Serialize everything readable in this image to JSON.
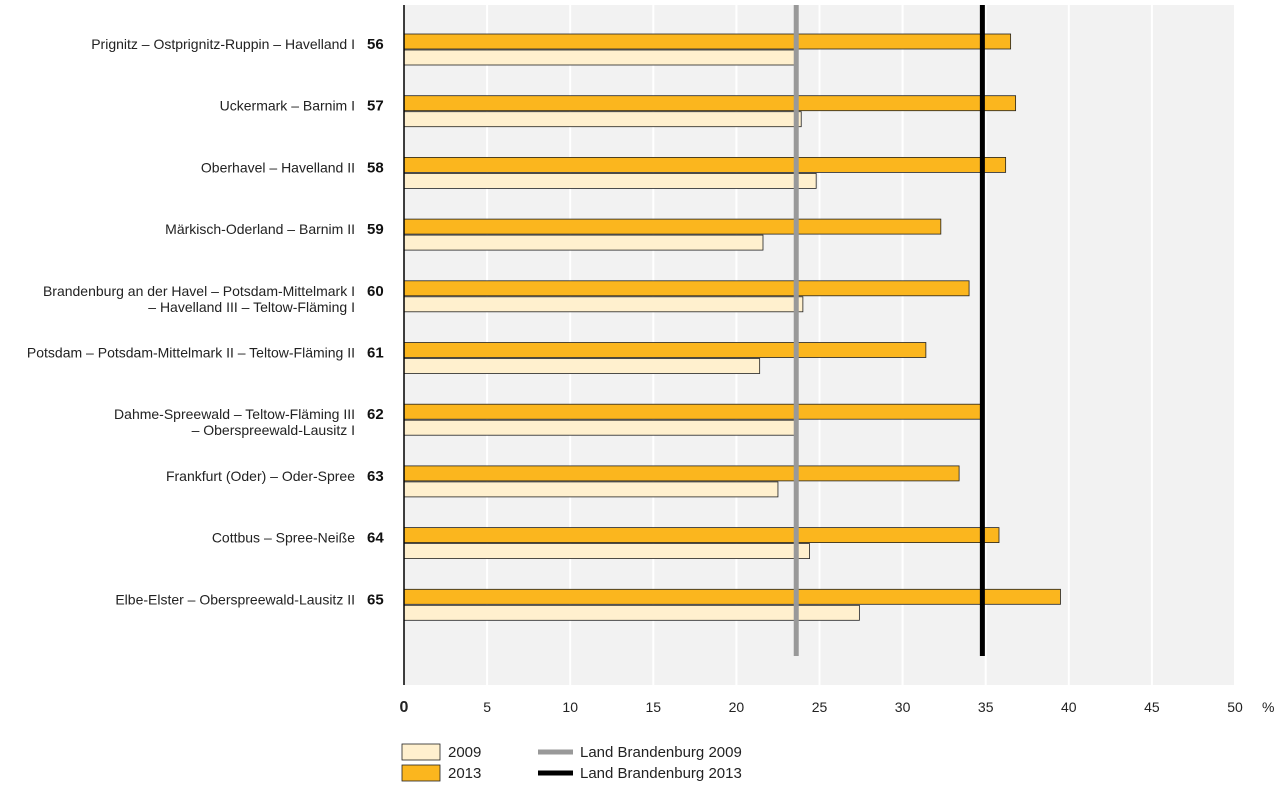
{
  "chart_data": {
    "type": "bar",
    "orientation": "horizontal",
    "categories": [
      {
        "label": [
          "Prignitz – Ostprignitz-Ruppin – Havelland I"
        ],
        "number": "56"
      },
      {
        "label": [
          "Uckermark – Barnim I"
        ],
        "number": "57"
      },
      {
        "label": [
          "Oberhavel – Havelland II"
        ],
        "number": "58"
      },
      {
        "label": [
          "Märkisch-Oderland – Barnim II"
        ],
        "number": "59"
      },
      {
        "label": [
          "Brandenburg an der Havel – Potsdam-Mittelmark I",
          "– Havelland III – Teltow-Fläming I"
        ],
        "number": "60"
      },
      {
        "label": [
          "Potsdam – Potsdam-Mittelmark II – Teltow-Fläming II"
        ],
        "number": "61"
      },
      {
        "label": [
          "Dahme-Spreewald – Teltow-Fläming III",
          "– Oberspreewald-Lausitz I"
        ],
        "number": "62"
      },
      {
        "label": [
          "Frankfurt (Oder) – Oder-Spree"
        ],
        "number": "63"
      },
      {
        "label": [
          "Cottbus – Spree-Neiße"
        ],
        "number": "64"
      },
      {
        "label": [
          "Elbe-Elster – Oberspreewald-Lausitz II"
        ],
        "number": "65"
      }
    ],
    "series": [
      {
        "name": "2013",
        "color": "#FBB61E",
        "values": [
          36.5,
          36.8,
          36.2,
          32.3,
          34.0,
          31.4,
          34.7,
          33.4,
          35.8,
          39.5
        ]
      },
      {
        "name": "2009",
        "color": "#FFF0CE",
        "values": [
          23.5,
          23.9,
          24.8,
          21.6,
          24.0,
          21.4,
          23.6,
          22.5,
          24.4,
          27.4
        ]
      }
    ],
    "reference_lines": [
      {
        "name": "Land Brandenburg 2009",
        "value": 23.6,
        "color": "#999999"
      },
      {
        "name": "Land Brandenburg 2013",
        "value": 34.8,
        "color": "#000000"
      }
    ],
    "xlim": [
      0,
      50
    ],
    "ticks": [
      "0",
      "5",
      "10",
      "15",
      "20",
      "25",
      "30",
      "35",
      "40",
      "45",
      "50"
    ],
    "xunit": "%",
    "grid": true,
    "legend_position": "bottom-left"
  }
}
